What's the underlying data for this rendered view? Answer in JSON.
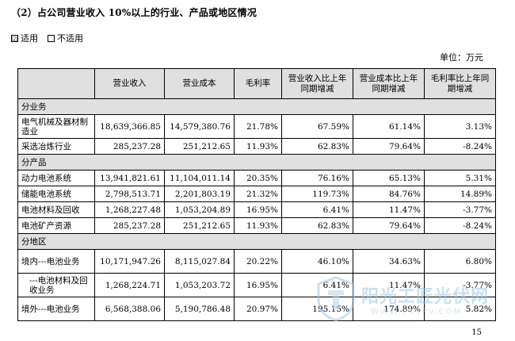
{
  "title": "（2）占公司营业收入 10%以上的行业、产品或地区情况",
  "applicability": {
    "checked_box": "☑",
    "checked_label": "适用",
    "unchecked_box": "",
    "unchecked_label": "不适用"
  },
  "unit": "单位：万元",
  "table": {
    "headers": [
      "",
      "营业收入",
      "营业成本",
      "毛利率",
      "营业收入比上年同期增减",
      "营业成本比上年同期增减",
      "毛利率比上年同期增减"
    ],
    "sections": [
      {
        "title": "分业务",
        "rows": [
          [
            "电气机械及器材制造业",
            "18,639,366.85",
            "14,579,380.76",
            "21.78%",
            "67.59%",
            "61.14%",
            "3.13%"
          ],
          [
            "采选冶炼行业",
            "285,237.28",
            "251,212.65",
            "11.93%",
            "62.83%",
            "79.64%",
            "-8.24%"
          ]
        ]
      },
      {
        "title": "分产品",
        "rows": [
          [
            "动力电池系统",
            "13,941,821.61",
            "11,104,011.14",
            "20.35%",
            "76.16%",
            "65.13%",
            "5.31%"
          ],
          [
            "储能电池系统",
            "2,798,513.71",
            "2,201,803.19",
            "21.32%",
            "119.73%",
            "84.76%",
            "14.89%"
          ],
          [
            "电池材料及回收",
            "1,268,227.48",
            "1,053,204.89",
            "16.95%",
            "6.41%",
            "11.47%",
            "-3.77%"
          ],
          [
            "电池矿产资源",
            "285,237.28",
            "251,212.65",
            "11.93%",
            "62.83%",
            "79.64%",
            "-8.24%"
          ]
        ]
      },
      {
        "title": "分地区",
        "rows": [
          [
            "境内---电池业务",
            "10,171,947.26",
            "8,115,027.84",
            "20.22%",
            "46.10%",
            "34.63%",
            "6.80%"
          ],
          [
            "---电池材料及回收业务",
            "1,268,224.71",
            "1,053,203.72",
            "16.95%",
            "6.41%",
            "11.47%",
            "-3.77%"
          ],
          [
            "境外---电池业务",
            "6,568,388.06",
            "5,190,786.48",
            "20.97%",
            "195.15%",
            "174.89%",
            "5.82%"
          ]
        ]
      }
    ]
  },
  "watermark": {
    "text": "阳光工匠光伏网",
    "url": "WWW.21SPV.COM",
    "color": "#9ec5e8"
  },
  "page_number": "15"
}
